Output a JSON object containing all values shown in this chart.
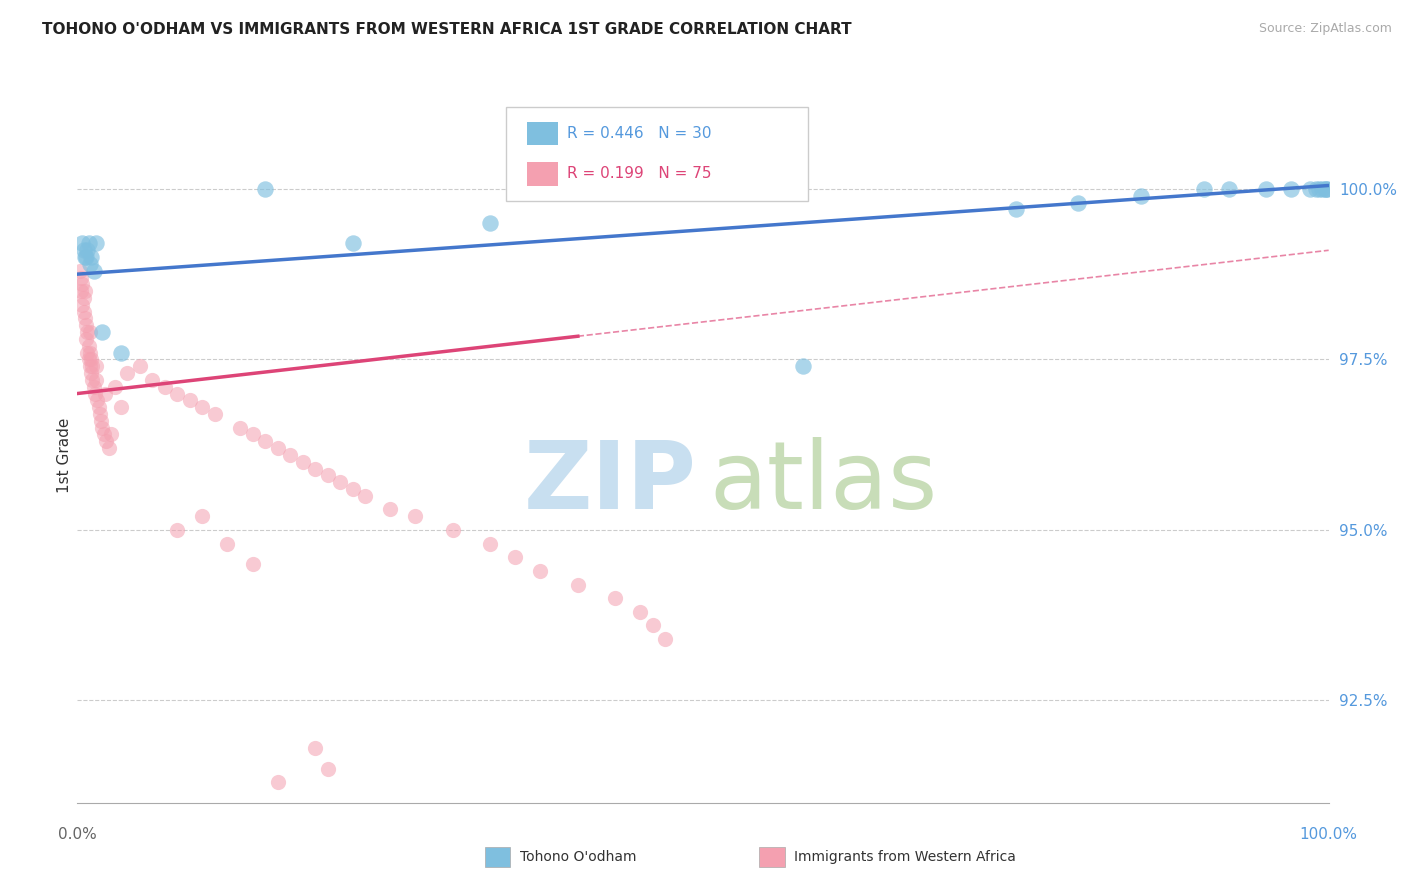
{
  "title": "TOHONO O'ODHAM VS IMMIGRANTS FROM WESTERN AFRICA 1ST GRADE CORRELATION CHART",
  "source": "Source: ZipAtlas.com",
  "ylabel": "1st Grade",
  "watermark_zip": "ZIP",
  "watermark_atlas": "atlas",
  "legend_r_blue": "R = 0.446",
  "legend_n_blue": "N = 30",
  "legend_r_pink": "R = 0.199",
  "legend_n_pink": "N = 75",
  "ytick_labels": [
    "92.5%",
    "95.0%",
    "97.5%",
    "100.0%"
  ],
  "ytick_values": [
    92.5,
    95.0,
    97.5,
    100.0
  ],
  "xlim": [
    0.0,
    100.0
  ],
  "ylim": [
    91.0,
    101.2
  ],
  "blue_color": "#7fbfdf",
  "pink_color": "#f4a0b0",
  "blue_line_color": "#4477cc",
  "pink_line_color": "#dd4477",
  "grid_color": "#cccccc",
  "background_color": "#ffffff",
  "blue_scatter_x": [
    0.4,
    0.5,
    0.6,
    0.7,
    0.8,
    0.9,
    1.0,
    1.1,
    1.3,
    1.5,
    2.0,
    3.5,
    15.0,
    33.0,
    22.0,
    75.0,
    80.0,
    85.0,
    90.0,
    92.0,
    95.0,
    97.0,
    98.5,
    99.0,
    99.2,
    99.5,
    99.7,
    99.8,
    99.9,
    58.0
  ],
  "blue_scatter_y": [
    99.2,
    99.1,
    99.0,
    99.0,
    99.1,
    99.2,
    98.9,
    99.0,
    98.8,
    99.2,
    97.9,
    97.6,
    100.0,
    99.5,
    99.2,
    99.7,
    99.8,
    99.9,
    100.0,
    100.0,
    100.0,
    100.0,
    100.0,
    100.0,
    100.0,
    100.0,
    100.0,
    100.0,
    100.0,
    97.4
  ],
  "pink_scatter_x": [
    0.2,
    0.3,
    0.3,
    0.4,
    0.4,
    0.5,
    0.5,
    0.6,
    0.6,
    0.7,
    0.7,
    0.8,
    0.8,
    0.9,
    0.9,
    1.0,
    1.0,
    1.0,
    1.1,
    1.1,
    1.2,
    1.2,
    1.3,
    1.4,
    1.5,
    1.5,
    1.6,
    1.7,
    1.8,
    1.9,
    2.0,
    2.1,
    2.2,
    2.3,
    2.5,
    2.7,
    3.0,
    3.5,
    4.0,
    5.0,
    6.0,
    7.0,
    8.0,
    9.0,
    10.0,
    11.0,
    13.0,
    14.0,
    15.0,
    16.0,
    17.0,
    18.0,
    19.0,
    20.0,
    21.0,
    22.0,
    23.0,
    25.0,
    27.0,
    30.0,
    33.0,
    35.0,
    37.0,
    40.0,
    43.0,
    45.0,
    46.0,
    47.0,
    19.0,
    20.0,
    16.0,
    14.0,
    12.0,
    10.0,
    8.0
  ],
  "pink_scatter_y": [
    98.8,
    98.5,
    98.7,
    98.3,
    98.6,
    98.4,
    98.2,
    98.1,
    98.5,
    98.0,
    97.8,
    97.9,
    97.6,
    97.7,
    97.5,
    97.4,
    97.6,
    97.9,
    97.3,
    97.5,
    97.2,
    97.4,
    97.1,
    97.0,
    97.2,
    97.4,
    96.9,
    96.8,
    96.7,
    96.6,
    96.5,
    96.4,
    97.0,
    96.3,
    96.2,
    96.4,
    97.1,
    96.8,
    97.3,
    97.4,
    97.2,
    97.1,
    97.0,
    96.9,
    96.8,
    96.7,
    96.5,
    96.4,
    96.3,
    96.2,
    96.1,
    96.0,
    95.9,
    95.8,
    95.7,
    95.6,
    95.5,
    95.3,
    95.2,
    95.0,
    94.8,
    94.6,
    94.4,
    94.2,
    94.0,
    93.8,
    93.6,
    93.4,
    91.8,
    91.5,
    91.3,
    94.5,
    94.8,
    95.2,
    95.0
  ],
  "blue_trend_y_start": 98.75,
  "blue_trend_y_end": 100.05,
  "pink_trend_y_start": 97.0,
  "pink_trend_y_end": 99.1,
  "pink_solid_end_x": 40.0
}
